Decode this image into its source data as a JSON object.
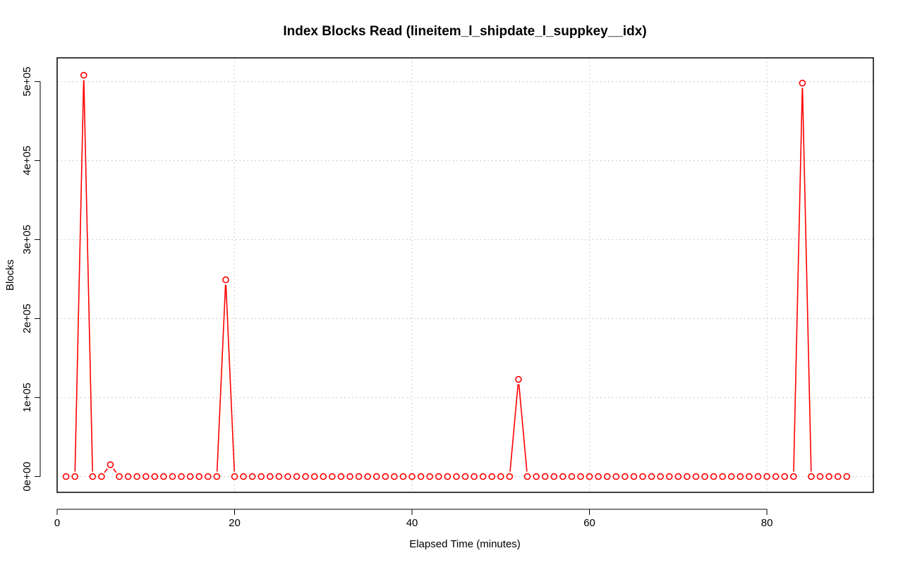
{
  "chart_data": {
    "type": "line",
    "title": "Index Blocks Read (lineitem_l_shipdate_l_suppkey__idx)",
    "xlabel": "Elapsed Time (minutes)",
    "ylabel": "Blocks",
    "xlim": [
      0,
      92
    ],
    "ylim": [
      -20000,
      530000
    ],
    "x_ticks": [
      0,
      20,
      40,
      60,
      80
    ],
    "x_tick_labels": [
      "0",
      "20",
      "40",
      "60",
      "80"
    ],
    "y_ticks": [
      0,
      100000,
      200000,
      300000,
      400000,
      500000
    ],
    "y_tick_labels": [
      "0e+00",
      "1e+05",
      "2e+05",
      "3e+05",
      "4e+05",
      "5e+05"
    ],
    "grid": true,
    "series": [
      {
        "color": "#ff0000",
        "x": [
          1,
          2,
          3,
          4,
          5,
          6,
          7,
          8,
          9,
          10,
          11,
          12,
          13,
          14,
          15,
          16,
          17,
          18,
          19,
          20,
          21,
          22,
          23,
          24,
          25,
          26,
          27,
          28,
          29,
          30,
          31,
          32,
          33,
          34,
          35,
          36,
          37,
          38,
          39,
          40,
          41,
          42,
          43,
          44,
          45,
          46,
          47,
          48,
          49,
          50,
          51,
          52,
          53,
          54,
          55,
          56,
          57,
          58,
          59,
          60,
          61,
          62,
          63,
          64,
          65,
          66,
          67,
          68,
          69,
          70,
          71,
          72,
          73,
          74,
          75,
          76,
          77,
          78,
          79,
          80,
          81,
          82,
          83,
          84,
          85,
          86,
          87,
          88,
          89
        ],
        "y": [
          0,
          0,
          508000,
          0,
          0,
          15000,
          0,
          0,
          0,
          0,
          0,
          0,
          0,
          0,
          0,
          0,
          0,
          0,
          249000,
          0,
          0,
          0,
          0,
          0,
          0,
          0,
          0,
          0,
          0,
          0,
          0,
          0,
          0,
          0,
          0,
          0,
          0,
          0,
          0,
          0,
          0,
          0,
          0,
          0,
          0,
          0,
          0,
          0,
          0,
          0,
          0,
          123000,
          0,
          0,
          0,
          0,
          0,
          0,
          0,
          0,
          0,
          0,
          0,
          0,
          0,
          0,
          0,
          0,
          0,
          0,
          0,
          0,
          0,
          0,
          0,
          0,
          0,
          0,
          0,
          0,
          0,
          0,
          0,
          498000,
          0,
          0,
          0,
          0,
          0
        ]
      }
    ]
  }
}
